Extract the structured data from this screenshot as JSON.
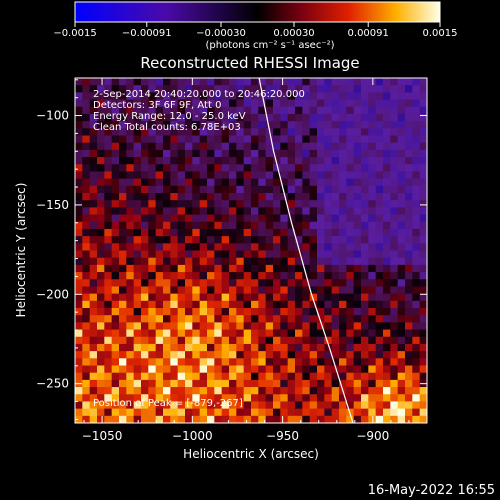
{
  "chart_data": {
    "type": "heatmap",
    "title": "Reconstructed RHESSI Image",
    "xlabel": "Heliocentric X (arcsec)",
    "ylabel": "Heliocentric Y (arcsec)",
    "xlim": [
      -1065,
      -870
    ],
    "ylim": [
      -272,
      -79
    ],
    "x_ticks": [
      -1050,
      -1000,
      -950,
      -900
    ],
    "x_tick_labels": [
      "−1050",
      "−1000",
      "−950",
      "−900"
    ],
    "y_ticks": [
      -100,
      -150,
      -200,
      -250
    ],
    "y_tick_labels": [
      "−100",
      "−150",
      "−200",
      "−250"
    ],
    "colorbar": {
      "range": [
        -0.0015,
        0.0015
      ],
      "ticks": [
        -0.0015,
        -0.00091,
        -0.0003,
        0.0003,
        0.00091,
        0.0015
      ],
      "tick_labels": [
        "−0.0015",
        "−0.00091",
        "−0.00030",
        "0.00030",
        "0.00091",
        "0.0015"
      ],
      "unit_label": "(photons cm⁻² s⁻¹ asec⁻²)"
    },
    "annotations": [
      "2-Sep-2014 20:40:20.000 to 20:46:20.000",
      "Detectors: 3F 6F 9F, Att 0",
      "Energy Range: 12.0 - 25.0 keV",
      "Clean     Total counts: 6.78E+03"
    ],
    "peak_label": "Position of Peak = [-879,-267]",
    "peak_position": [
      -879,
      -267
    ],
    "limb_curve": [
      [
        -963,
        -79
      ],
      [
        -955,
        -120
      ],
      [
        -945,
        -160
      ],
      [
        -934,
        -200
      ],
      [
        -924,
        -230
      ],
      [
        -911,
        -272
      ]
    ],
    "colors": {
      "background": "#000000",
      "limb": "#ffffff",
      "text": "#ffffff"
    }
  },
  "footer": {
    "timestamp": "16-May-2022 16:55"
  }
}
